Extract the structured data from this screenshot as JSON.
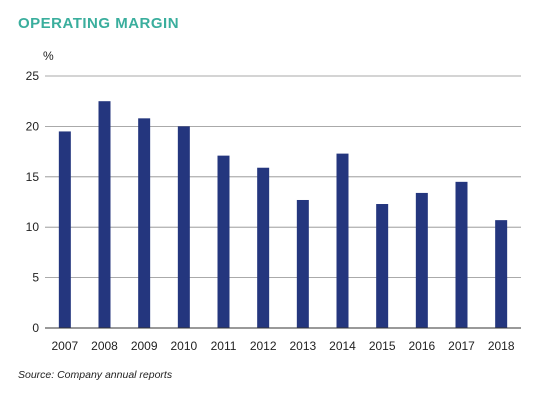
{
  "chart_data": {
    "type": "bar",
    "title": "OPERATING MARGIN",
    "ylabel": "%",
    "xlabel": "",
    "categories": [
      "2007",
      "2008",
      "2009",
      "2010",
      "2011",
      "2012",
      "2013",
      "2014",
      "2015",
      "2016",
      "2017",
      "2018"
    ],
    "values": [
      19.5,
      22.5,
      20.8,
      20.0,
      17.1,
      15.9,
      12.7,
      17.3,
      12.3,
      13.4,
      14.5,
      10.7
    ],
    "ylim": [
      0,
      25
    ],
    "yticks": [
      "0",
      "5",
      "10",
      "15",
      "20",
      "25"
    ],
    "grid": true,
    "legend": "none",
    "source": "Source: Company annual reports",
    "colors": {
      "bar": "#24367e",
      "title": "#3aae9d",
      "grid": "#8e8e8e",
      "axis": "#333333"
    }
  }
}
